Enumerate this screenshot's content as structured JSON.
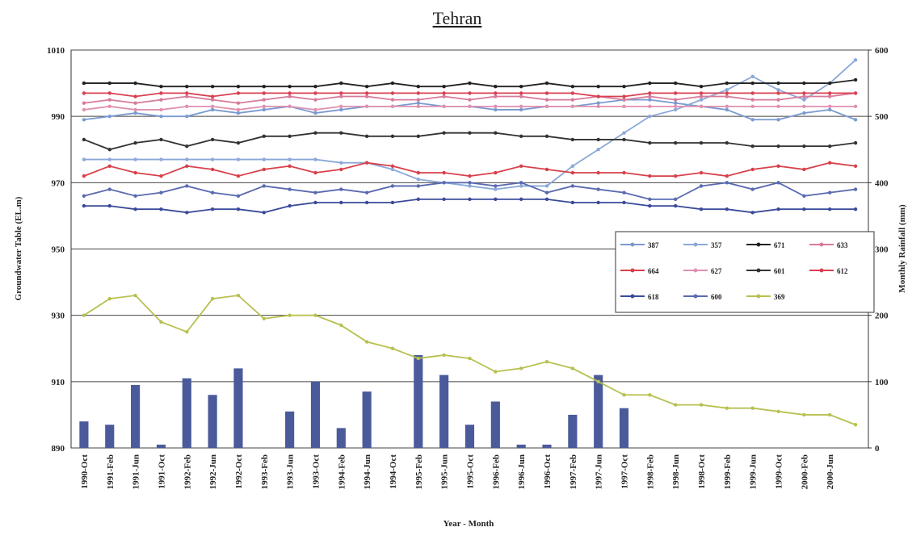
{
  "chart_data": {
    "type": "line",
    "title": "Tehran",
    "x_label": "Year - Month",
    "y_label": "Groundwater Table (EL.m)",
    "y2_label": "Monthly Rainfall (mm)",
    "categories": [
      "1990-Oct",
      "1991-Feb",
      "1991-Jun",
      "1991-Oct",
      "1992-Feb",
      "1992-Jun",
      "1992-Oct",
      "1993-Feb",
      "1993-Jun",
      "1993-Oct",
      "1994-Feb",
      "1994-Jun",
      "1994-Oct",
      "1995-Feb",
      "1995-Jun",
      "1995-Oct",
      "1996-Feb",
      "1996-Jun",
      "1996-Oct",
      "1997-Feb",
      "1997-Jun",
      "1997-Oct",
      "1998-Feb",
      "1998-Jun",
      "1998-Oct",
      "1999-Feb",
      "1999-Jun",
      "1999-Oct",
      "2000-Feb",
      "2000-Jun",
      null
    ],
    "ylim": [
      890,
      1010
    ],
    "yticks": [
      890,
      910,
      930,
      950,
      970,
      990,
      1010
    ],
    "y2lim": [
      0,
      600
    ],
    "y2ticks": [
      0,
      100,
      200,
      300,
      400,
      500,
      600
    ],
    "grid": true,
    "legend": "right",
    "bars": {
      "color": "#4a5a9a",
      "axis": "y2",
      "values": [
        40,
        35,
        95,
        5,
        105,
        80,
        120,
        0,
        55,
        100,
        30,
        85,
        0,
        140,
        110,
        35,
        70,
        5,
        5,
        50,
        110,
        60,
        0,
        0,
        0,
        0,
        0,
        0,
        0,
        0,
        0
      ]
    },
    "series": [
      {
        "name": "387",
        "color": "#7a9ad0",
        "values": [
          989,
          990,
          991,
          990,
          990,
          992,
          991,
          992,
          993,
          991,
          992,
          993,
          993,
          994,
          993,
          993,
          992,
          992,
          993,
          993,
          994,
          995,
          995,
          994,
          993,
          992,
          989,
          989,
          991,
          992,
          989
        ]
      },
      {
        "name": "357",
        "color": "#8aa8d8",
        "values": [
          977,
          977,
          977,
          977,
          977,
          977,
          977,
          977,
          977,
          977,
          976,
          976,
          974,
          971,
          970,
          969,
          968,
          969,
          969,
          975,
          980,
          985,
          990,
          992,
          995,
          998,
          1002,
          998,
          995,
          1000,
          1007
        ]
      },
      {
        "name": "671",
        "color": "#222222",
        "values": [
          1000,
          1000,
          1000,
          999,
          999,
          999,
          999,
          999,
          999,
          999,
          1000,
          999,
          1000,
          999,
          999,
          1000,
          999,
          999,
          1000,
          999,
          999,
          999,
          1000,
          1000,
          999,
          1000,
          1000,
          1000,
          1000,
          1000,
          1001
        ]
      },
      {
        "name": "633",
        "color": "#d87a9a",
        "values": [
          994,
          995,
          994,
          995,
          996,
          995,
          994,
          995,
          996,
          995,
          996,
          996,
          995,
          995,
          996,
          995,
          996,
          996,
          995,
          995,
          996,
          995,
          996,
          995,
          996,
          996,
          995,
          995,
          996,
          996,
          997
        ]
      },
      {
        "name": "664",
        "color": "#d8404a",
        "values": [
          972,
          975,
          973,
          972,
          975,
          974,
          972,
          974,
          975,
          973,
          974,
          976,
          975,
          973,
          973,
          972,
          973,
          975,
          974,
          973,
          973,
          973,
          972,
          972,
          973,
          972,
          974,
          975,
          974,
          976,
          975
        ]
      },
      {
        "name": "627",
        "color": "#e090b0",
        "values": [
          992,
          993,
          992,
          992,
          993,
          993,
          992,
          993,
          993,
          992,
          993,
          993,
          993,
          993,
          993,
          993,
          993,
          993,
          993,
          993,
          993,
          993,
          993,
          993,
          993,
          993,
          993,
          993,
          993,
          993,
          993
        ]
      },
      {
        "name": "601",
        "color": "#333333",
        "values": [
          983,
          980,
          982,
          983,
          981,
          983,
          982,
          984,
          984,
          985,
          985,
          984,
          984,
          984,
          985,
          985,
          985,
          984,
          984,
          983,
          983,
          983,
          982,
          982,
          982,
          982,
          981,
          981,
          981,
          981,
          982
        ]
      },
      {
        "name": "612",
        "color": "#d84050",
        "values": [
          997,
          997,
          996,
          997,
          997,
          996,
          997,
          997,
          997,
          997,
          997,
          997,
          997,
          997,
          997,
          997,
          997,
          997,
          997,
          997,
          996,
          996,
          997,
          997,
          997,
          997,
          997,
          997,
          997,
          997,
          997
        ]
      },
      {
        "name": "618",
        "color": "#3a4a9a",
        "values": [
          963,
          963,
          962,
          962,
          961,
          962,
          962,
          961,
          963,
          964,
          964,
          964,
          964,
          965,
          965,
          965,
          965,
          965,
          965,
          964,
          964,
          964,
          963,
          963,
          962,
          962,
          961,
          962,
          962,
          962,
          962
        ]
      },
      {
        "name": "600",
        "color": "#5a6ab0",
        "values": [
          966,
          968,
          966,
          967,
          969,
          967,
          966,
          969,
          968,
          967,
          968,
          967,
          969,
          969,
          970,
          970,
          969,
          970,
          967,
          969,
          968,
          967,
          965,
          965,
          969,
          970,
          968,
          970,
          966,
          967,
          968
        ]
      },
      {
        "name": "369",
        "color": "#b8c050",
        "values": [
          930,
          935,
          936,
          928,
          925,
          935,
          936,
          929,
          930,
          930,
          927,
          922,
          920,
          917,
          918,
          917,
          913,
          914,
          916,
          914,
          910,
          906,
          906,
          903,
          903,
          902,
          902,
          901,
          900,
          900,
          897
        ]
      }
    ]
  }
}
